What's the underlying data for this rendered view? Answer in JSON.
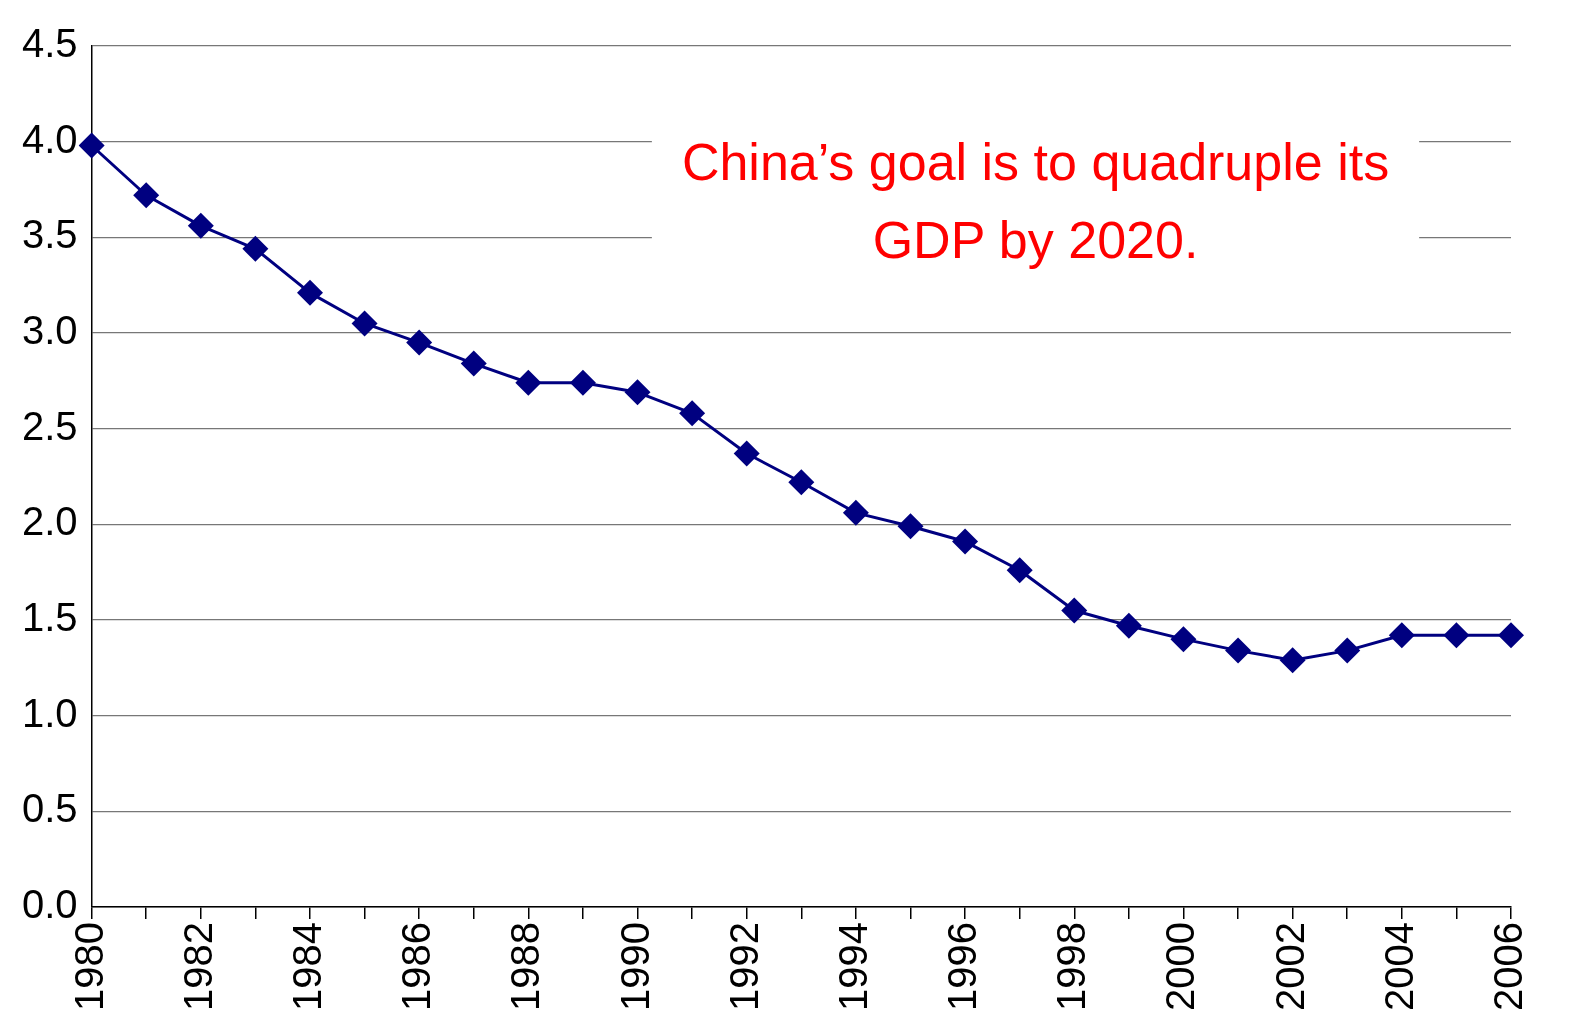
{
  "chart_data": {
    "type": "line",
    "categories": [
      "1980",
      null,
      "1982",
      null,
      "1984",
      null,
      "1986",
      null,
      "1988",
      null,
      "1990",
      null,
      "1992",
      null,
      "1994",
      null,
      "1996",
      null,
      "1998",
      null,
      "2000",
      null,
      "2002",
      null,
      "2004",
      null,
      "2006"
    ],
    "series": [
      {
        "color": "#000080",
        "values": [
          3.98,
          3.72,
          3.56,
          3.44,
          3.21,
          3.05,
          2.95,
          2.84,
          2.74,
          2.74,
          2.69,
          2.58,
          2.37,
          2.22,
          2.06,
          1.99,
          1.91,
          1.76,
          1.55,
          1.47,
          1.4,
          1.34,
          1.29,
          1.34,
          1.42,
          1.42,
          1.42
        ]
      }
    ],
    "ylim": [
      0,
      4.5
    ],
    "yticks": [
      {
        "value": 0,
        "label": "0.0"
      },
      {
        "value": 0.5,
        "label": "0.5"
      },
      {
        "value": 1,
        "label": "1.0"
      },
      {
        "value": 1.5,
        "label": "1.5"
      },
      {
        "value": 2,
        "label": "2.0"
      },
      {
        "value": 2.5,
        "label": "2.5"
      },
      {
        "value": 3,
        "label": "3.0"
      },
      {
        "value": 3.5,
        "label": "3.5"
      },
      {
        "value": 4,
        "label": "4.0"
      },
      {
        "value": 4.5,
        "label": "4.5"
      }
    ],
    "grid": "y",
    "legend": false,
    "marker": "diamond",
    "line_style": "solid",
    "annotations": [
      "China’s goal is to quadruple its GDP by 2020."
    ]
  }
}
